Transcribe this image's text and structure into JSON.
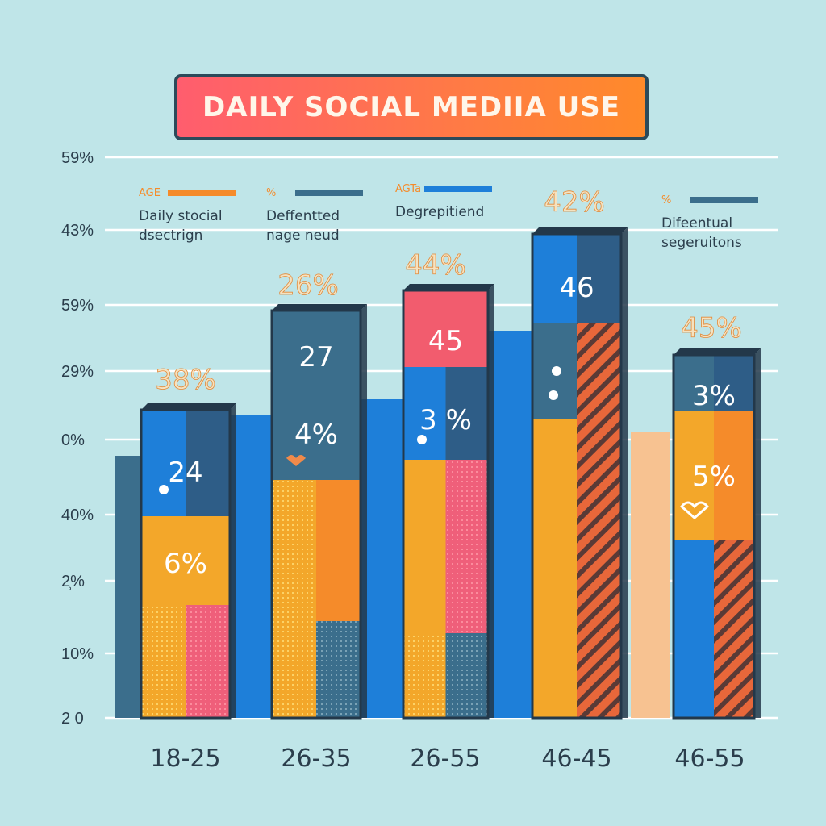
{
  "title": "DAILY SOCIAL MEDIIA USE",
  "colors": {
    "background": "#bfe5e8",
    "blue": "#1e7fd9",
    "navy": "#2e5d87",
    "slate": "#3b6e8c",
    "coral": "#f25c6e",
    "orange": "#f58b2a",
    "amber": "#f3a72a",
    "peach": "#f7c291",
    "pink": "#ef5f7a",
    "rust": "#e8673a",
    "grid": "#ffffff",
    "outline": "#23384a"
  },
  "chart_data": {
    "type": "bar",
    "title": "DAILY SOCIAL MEDIIA USE",
    "categories": [
      "18-25",
      "26-35",
      "26-55",
      "46-45",
      "46-55"
    ],
    "y_tick_labels": [
      "2 0",
      "10%",
      "2̹%",
      "40%",
      "0%",
      "29%",
      "59%",
      "43%",
      "59%"
    ],
    "grid": true,
    "bar_top_labels": [
      "24",
      "27",
      "45",
      "46",
      "3%"
    ],
    "bar_inner_labels": [
      "6%",
      "4%",
      "3 %",
      "",
      "5%"
    ],
    "floating_labels": [
      "38%",
      "26%",
      "44%",
      "42%",
      "45%"
    ],
    "legend": [
      {
        "key": "AGE",
        "text": "Daily stocial\ndsectrign"
      },
      {
        "key": "%",
        "text": "Deffentted\nnage neud"
      },
      {
        "key": "AGTa",
        "text": "Degrepitiend"
      },
      {
        "key": "%",
        "text": "Difeentual\nsegeruitons"
      }
    ]
  }
}
